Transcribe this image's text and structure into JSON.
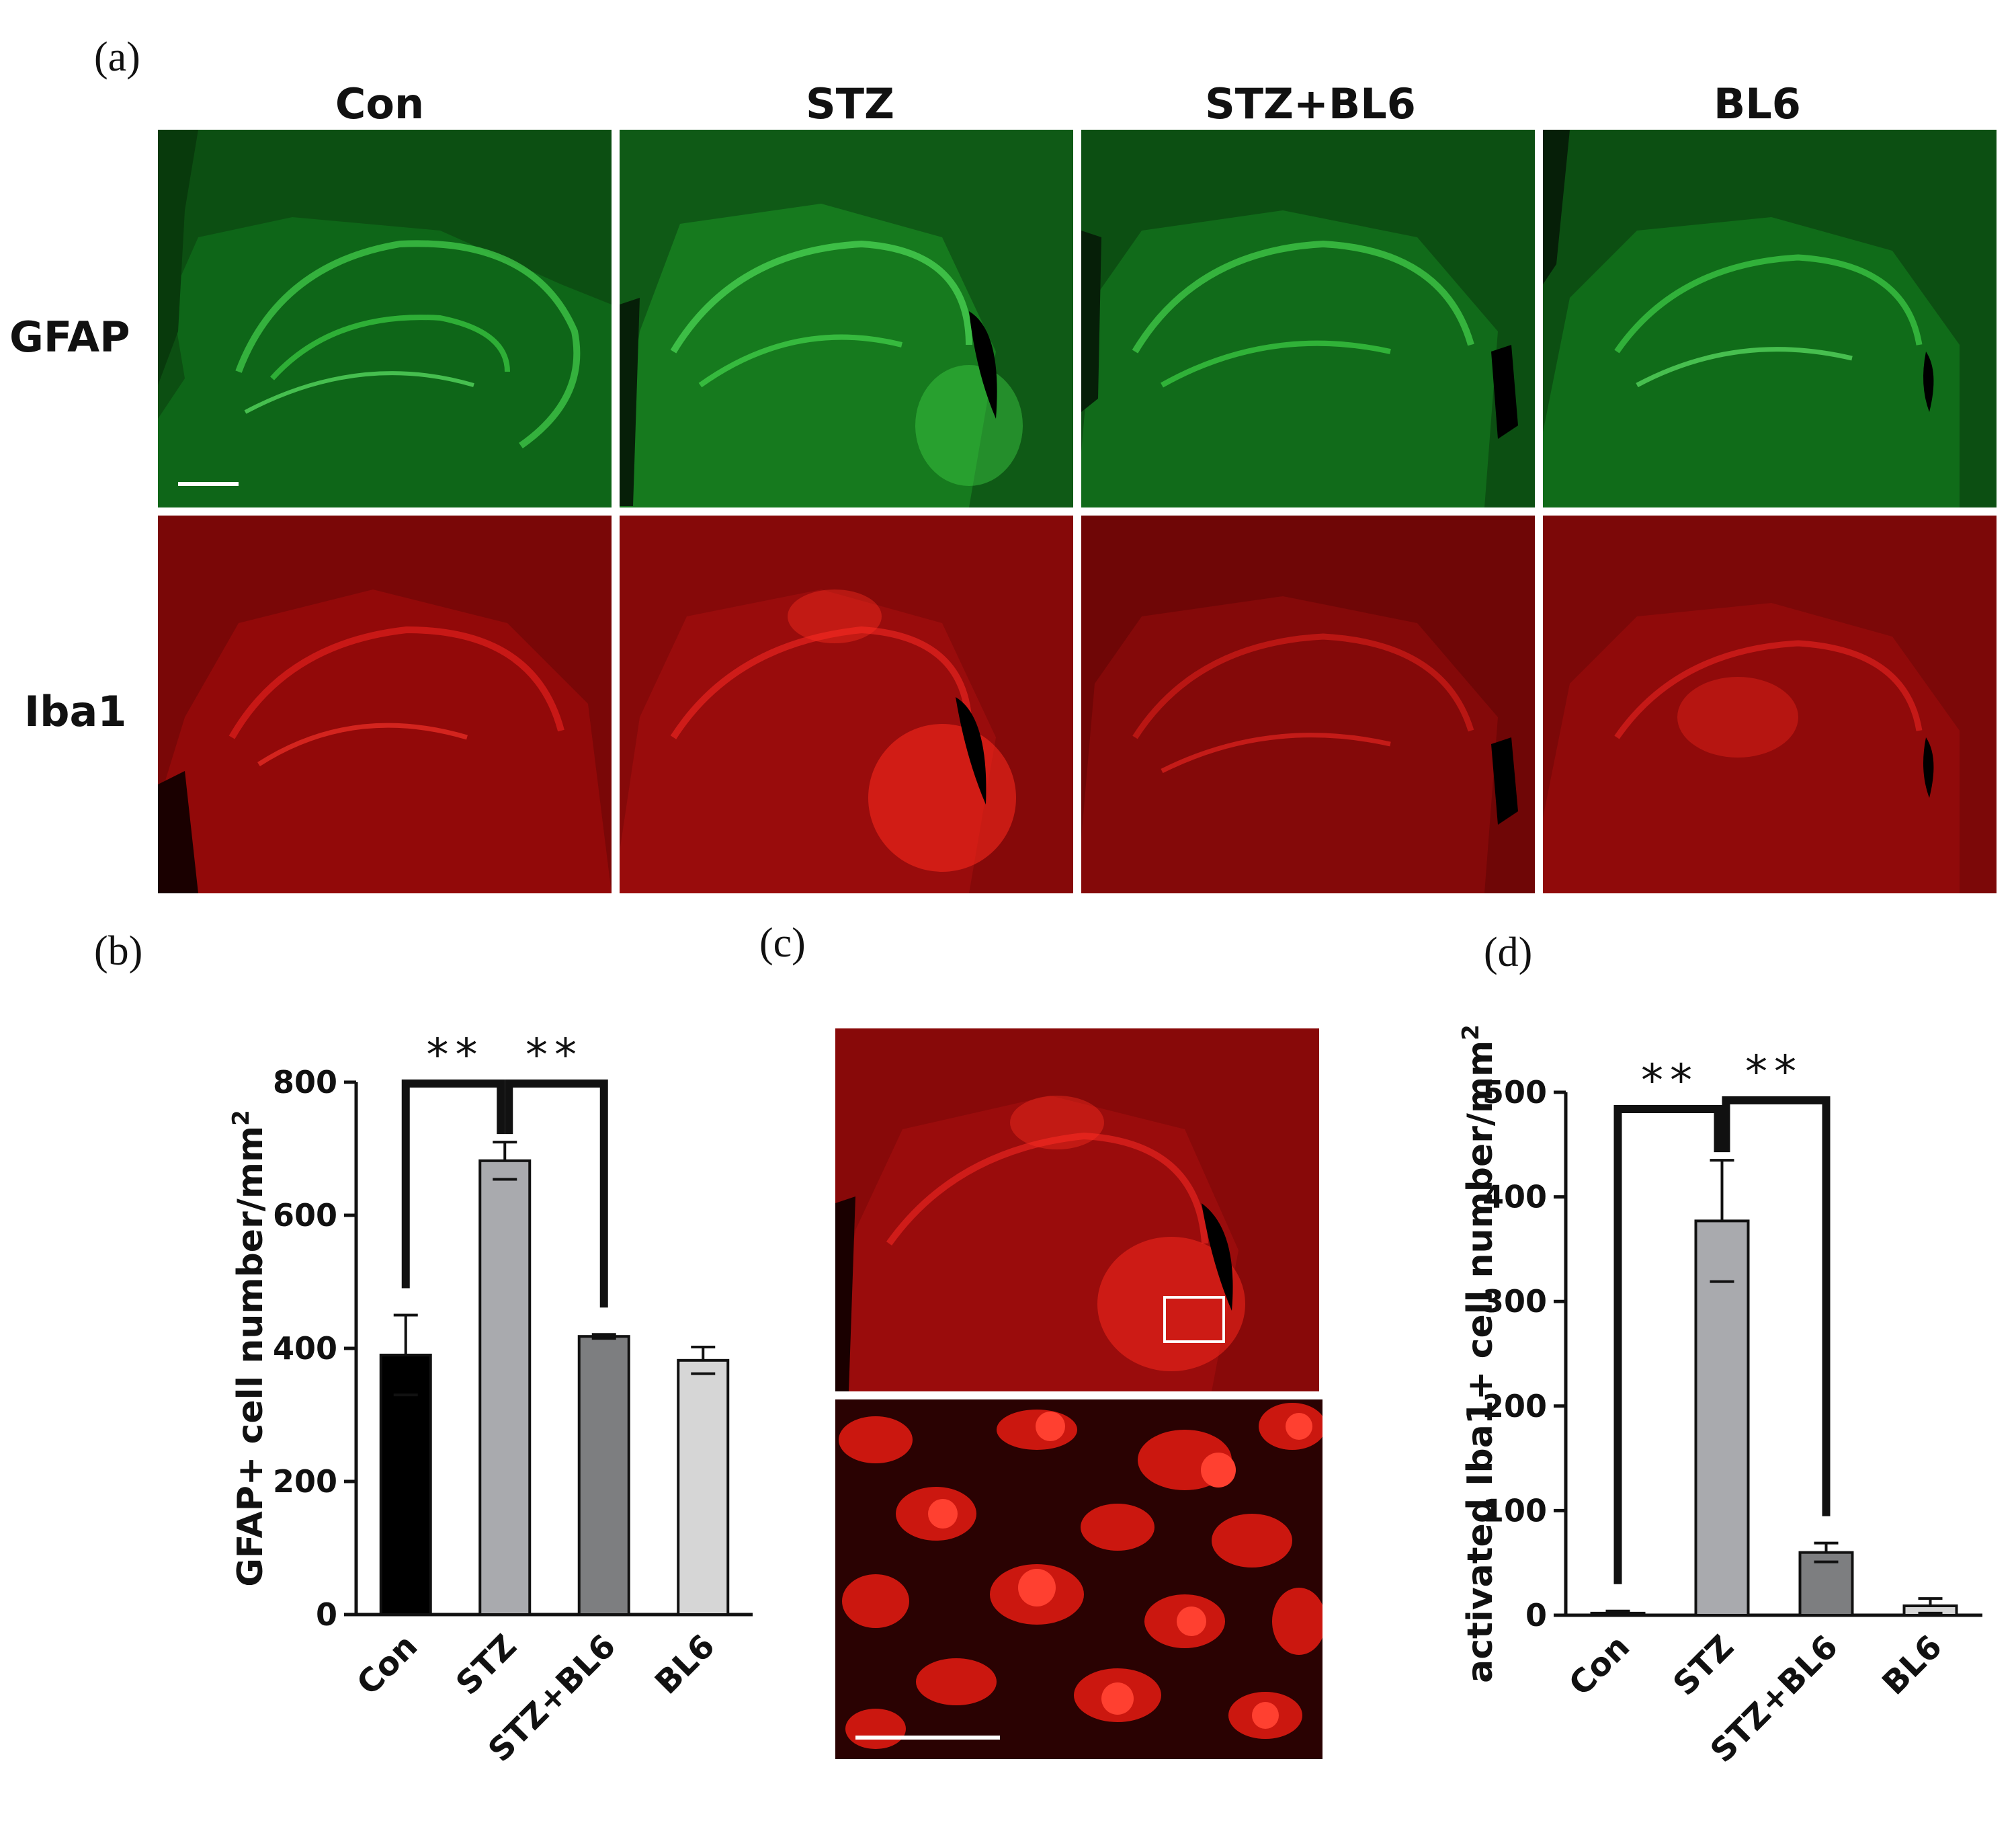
{
  "panels": {
    "a": {
      "letter": "(a)",
      "columns": [
        "Con",
        "STZ",
        "STZ+BL6",
        "BL6"
      ],
      "rows": [
        "GFAP",
        "Iba1"
      ],
      "colors": {
        "gfap": "#1fa82a",
        "iba1": "#d4140f"
      }
    },
    "b": {
      "letter": "(b)"
    },
    "c": {
      "letter": "(c)"
    },
    "d": {
      "letter": "(d)"
    }
  },
  "chart_data": [
    {
      "type": "bar",
      "panel": "b",
      "categories": [
        "Con",
        "STZ",
        "STZ+BL6",
        "BL6"
      ],
      "values": [
        390,
        682,
        418,
        382
      ],
      "errors": [
        60,
        28,
        3,
        20
      ],
      "bar_colors": [
        "#000000",
        "#a9aaae",
        "#7d7e80",
        "#d6d6d6"
      ],
      "ylabel": "GFAP+ cell number/mm²",
      "ylim": [
        0,
        800
      ],
      "yticks": [
        0,
        200,
        400,
        600,
        800
      ],
      "significance": [
        {
          "from": 0,
          "to": 1,
          "label": "**"
        },
        {
          "from": 1,
          "to": 2,
          "label": "**"
        }
      ]
    },
    {
      "type": "bar",
      "panel": "d",
      "categories": [
        "Con",
        "STZ",
        "STZ+BL6",
        "BL6"
      ],
      "values": [
        2,
        377,
        60,
        9
      ],
      "errors": [
        2,
        58,
        9,
        7
      ],
      "bar_colors": [
        "#000000",
        "#a9aaae",
        "#7d7e80",
        "#d6d6d6"
      ],
      "ylabel": "activated Iba1+ cell number/mm²",
      "ylim": [
        0,
        500
      ],
      "yticks": [
        0,
        100,
        200,
        300,
        400,
        500
      ],
      "significance": [
        {
          "from": 0,
          "to": 1,
          "label": "**"
        },
        {
          "from": 1,
          "to": 2,
          "label": "**"
        }
      ]
    }
  ]
}
